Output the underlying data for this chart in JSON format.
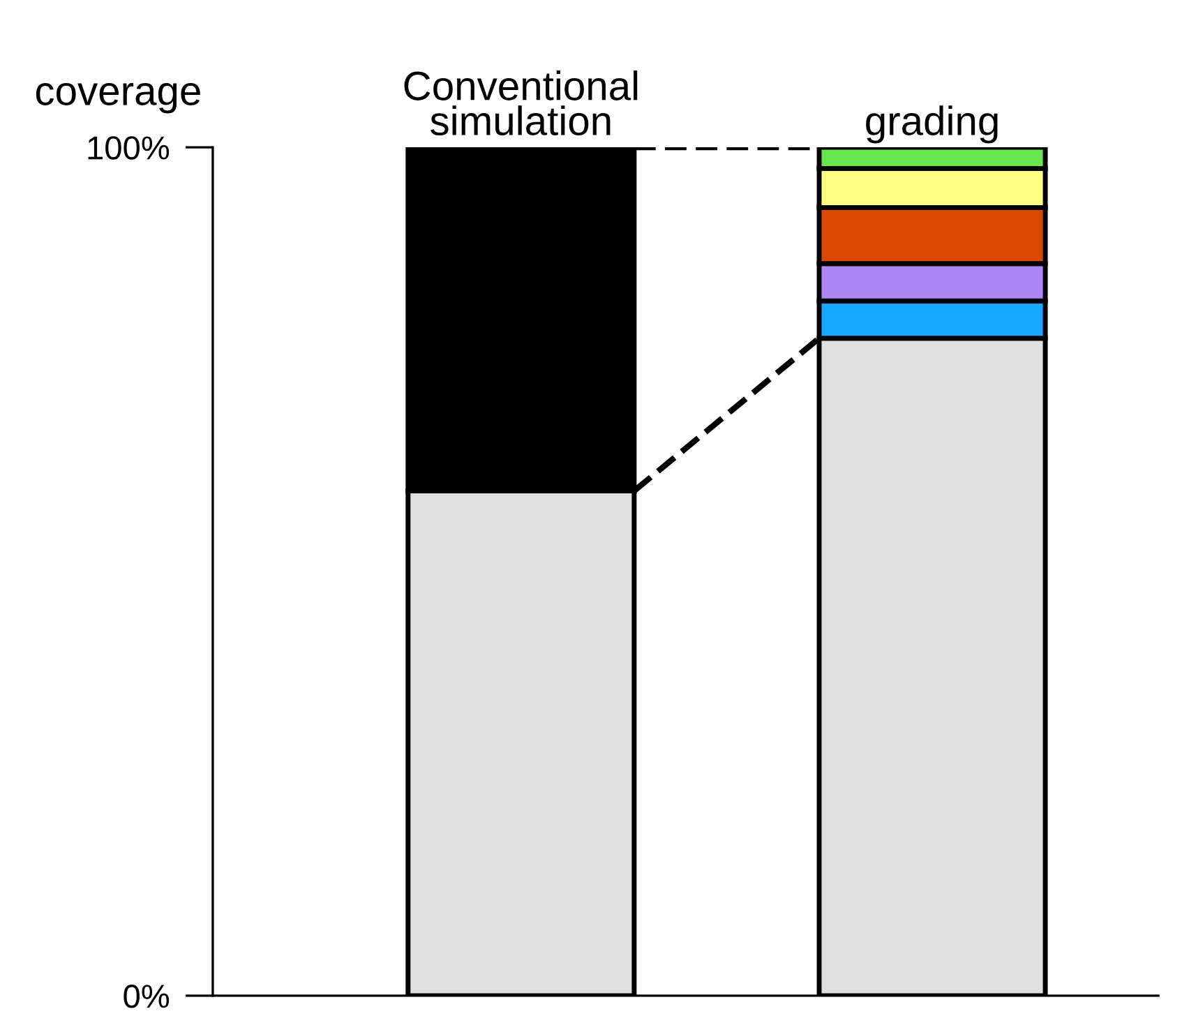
{
  "chart_data": {
    "type": "bar",
    "stacked": true,
    "ylabel": "coverage",
    "categories": [
      "Conventional\nsimulation",
      "grading"
    ],
    "series": [
      {
        "color": "#e0e0e0",
        "values": [
          59.5,
          77.5
        ]
      },
      {
        "color": "#000000",
        "values": [
          40.5,
          null
        ]
      },
      {
        "color": "#1aa7ff",
        "values": [
          null,
          4.4
        ]
      },
      {
        "color": "#b084f5",
        "values": [
          null,
          4.4
        ]
      },
      {
        "color": "#d94a00",
        "values": [
          null,
          6.6
        ]
      },
      {
        "color": "#ffff80",
        "values": [
          null,
          4.6
        ]
      },
      {
        "color": "#66e64d",
        "values": [
          null,
          2.5
        ]
      }
    ],
    "ylim": [
      0,
      100
    ],
    "yticks": [
      {
        "value": 0,
        "label": "0%"
      },
      {
        "value": 100,
        "label": "100%"
      }
    ],
    "grid": false,
    "legend": false
  }
}
